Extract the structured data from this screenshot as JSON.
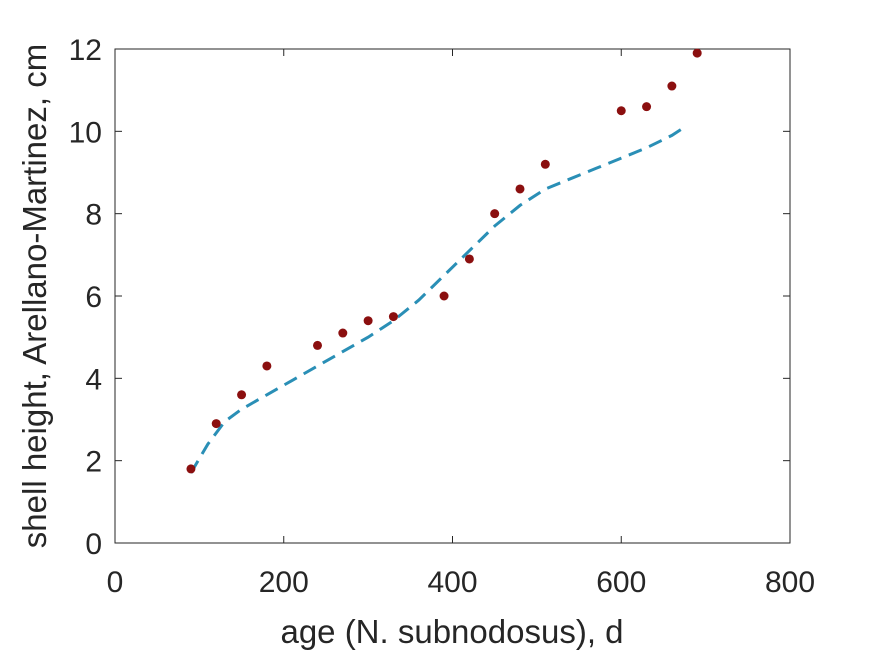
{
  "chart_data": {
    "type": "scatter",
    "xlabel": "age (N. subnodosus), d",
    "ylabel": "shell height, Arellano-Martinez, cm",
    "xlim": [
      0,
      800
    ],
    "ylim": [
      0,
      12
    ],
    "xticks": [
      0,
      200,
      400,
      600,
      800
    ],
    "yticks": [
      0,
      2,
      4,
      6,
      8,
      10,
      12
    ],
    "grid": false,
    "legend": "none",
    "series": [
      {
        "kind": "points",
        "color": "#8b0f0f",
        "x": [
          90,
          120,
          150,
          180,
          240,
          270,
          300,
          330,
          390,
          420,
          450,
          480,
          510,
          600,
          630,
          660,
          690
        ],
        "y": [
          1.8,
          2.9,
          3.6,
          4.3,
          4.8,
          5.1,
          5.4,
          5.5,
          6.0,
          6.9,
          8.0,
          8.6,
          9.2,
          10.5,
          10.6,
          11.1,
          11.9
        ]
      },
      {
        "kind": "line",
        "style": "dashed",
        "color": "#2a8fb6",
        "x": [
          90,
          110,
          130,
          150,
          180,
          210,
          240,
          270,
          300,
          330,
          360,
          390,
          420,
          450,
          480,
          510,
          540,
          570,
          600,
          630,
          660,
          675
        ],
        "y": [
          1.7,
          2.4,
          2.95,
          3.25,
          3.6,
          3.95,
          4.3,
          4.65,
          5.0,
          5.4,
          5.9,
          6.5,
          7.1,
          7.7,
          8.2,
          8.6,
          8.85,
          9.1,
          9.35,
          9.6,
          9.9,
          10.1
        ]
      }
    ]
  }
}
